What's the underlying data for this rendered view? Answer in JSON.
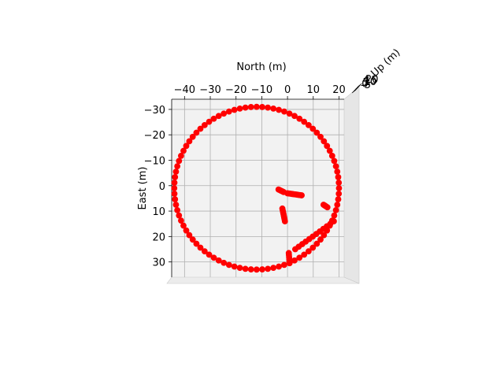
{
  "chart_data": {
    "type": "scatter",
    "projection": "3d-top-view",
    "title": "",
    "xlabel": "North (m)",
    "ylabel": "East (m)",
    "zlabel": "Up (m)",
    "xlim": [
      -45,
      22
    ],
    "ylim": [
      36,
      -34
    ],
    "x_ticks": [
      -40,
      -30,
      -20,
      -10,
      0,
      10,
      20
    ],
    "y_ticks": [
      -30,
      -20,
      -10,
      0,
      10,
      20,
      30
    ],
    "z_ticks": [
      "-5",
      "0",
      "5",
      "10",
      "15",
      "20"
    ],
    "grid": true,
    "marker_color": "#ff0000",
    "pane_color": "#f2f2f2",
    "grid_color": "#b0b0b0",
    "circle": {
      "center": [
        -12,
        1
      ],
      "radius": 32,
      "n_points": 92
    },
    "segments": [
      {
        "from": [
          -3.5,
          1.5
        ],
        "to": [
          -1.5,
          2.5
        ],
        "n_points": 5
      },
      {
        "from": [
          0.0,
          3.0
        ],
        "to": [
          5.5,
          3.8
        ],
        "n_points": 10
      },
      {
        "from": [
          -2.0,
          9.0
        ],
        "to": [
          -1.0,
          14.0
        ],
        "n_points": 8
      },
      {
        "from": [
          14.0,
          7.5
        ],
        "to": [
          15.5,
          8.5
        ],
        "n_points": 4
      },
      {
        "from": [
          0.5,
          26.5
        ],
        "to": [
          0.8,
          30.5
        ],
        "n_points": 6
      },
      {
        "from": [
          3.0,
          25.0
        ],
        "to": [
          18.0,
          14.0
        ],
        "n_points": 12
      }
    ]
  }
}
